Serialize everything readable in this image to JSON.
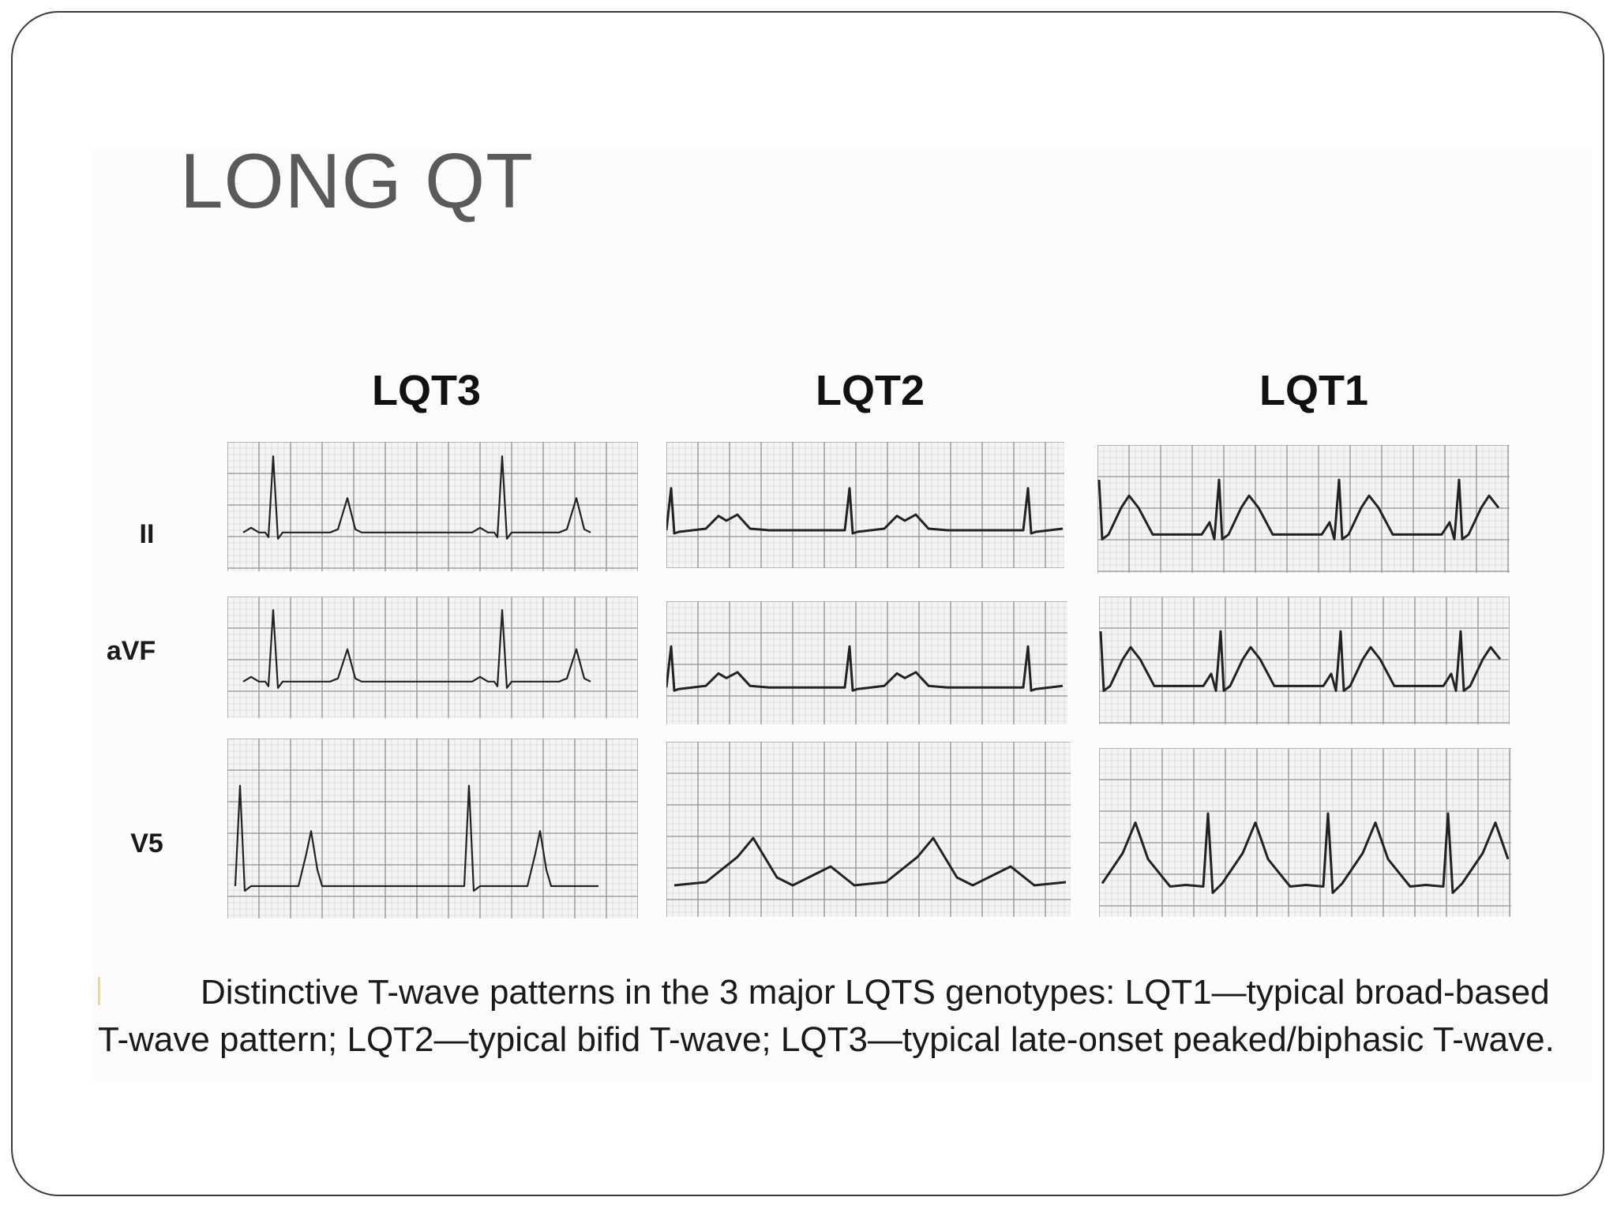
{
  "slide": {
    "title": "LONG QT"
  },
  "figure": {
    "columns": [
      {
        "id": "lqt3",
        "label": "LQT3"
      },
      {
        "id": "lqt2",
        "label": "LQT2"
      },
      {
        "id": "lqt1",
        "label": "LQT1"
      }
    ],
    "leads": [
      {
        "id": "ii",
        "label": "II"
      },
      {
        "id": "avf",
        "label": "aVF"
      },
      {
        "id": "v5",
        "label": "V5"
      }
    ],
    "caption": {
      "line1": "Distinctive T-wave patterns in the 3 major LQTS genotypes: LQT1—typical broad-based",
      "line2": "T-wave pattern; LQT2—typical bifid T-wave; LQT3—typical late-onset peaked/biphasic T-wave."
    }
  },
  "colors": {
    "title": "#5a5a5a",
    "trace": "#222222",
    "grid": "#9a9a9a",
    "frame": "#3c3c3c"
  }
}
